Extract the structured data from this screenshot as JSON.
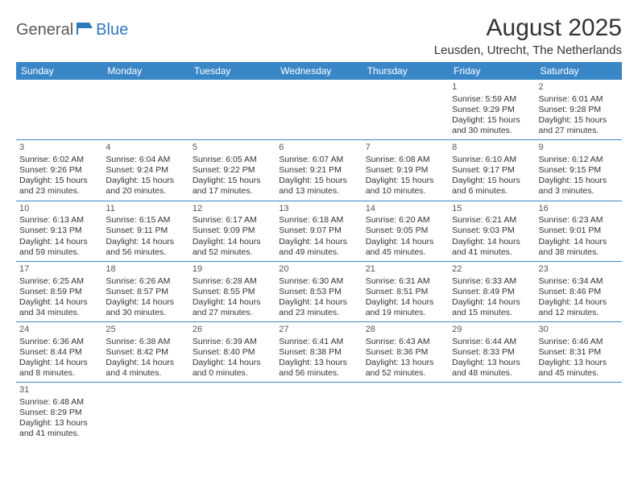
{
  "logo": {
    "part1": "General",
    "part2": "Blue"
  },
  "title": "August 2025",
  "location": "Leusden, Utrecht, The Netherlands",
  "colors": {
    "headerBg": "#3a87c8",
    "headerText": "#ffffff",
    "border": "#3a87c8",
    "logoGray": "#5a5a5a",
    "logoBlue": "#2f78bc",
    "bodyText": "#333333"
  },
  "dayHeaders": [
    "Sunday",
    "Monday",
    "Tuesday",
    "Wednesday",
    "Thursday",
    "Friday",
    "Saturday"
  ],
  "weeks": [
    [
      null,
      null,
      null,
      null,
      null,
      {
        "n": "1",
        "sr": "Sunrise: 5:59 AM",
        "ss": "Sunset: 9:29 PM",
        "d1": "Daylight: 15 hours",
        "d2": "and 30 minutes."
      },
      {
        "n": "2",
        "sr": "Sunrise: 6:01 AM",
        "ss": "Sunset: 9:28 PM",
        "d1": "Daylight: 15 hours",
        "d2": "and 27 minutes."
      }
    ],
    [
      {
        "n": "3",
        "sr": "Sunrise: 6:02 AM",
        "ss": "Sunset: 9:26 PM",
        "d1": "Daylight: 15 hours",
        "d2": "and 23 minutes."
      },
      {
        "n": "4",
        "sr": "Sunrise: 6:04 AM",
        "ss": "Sunset: 9:24 PM",
        "d1": "Daylight: 15 hours",
        "d2": "and 20 minutes."
      },
      {
        "n": "5",
        "sr": "Sunrise: 6:05 AM",
        "ss": "Sunset: 9:22 PM",
        "d1": "Daylight: 15 hours",
        "d2": "and 17 minutes."
      },
      {
        "n": "6",
        "sr": "Sunrise: 6:07 AM",
        "ss": "Sunset: 9:21 PM",
        "d1": "Daylight: 15 hours",
        "d2": "and 13 minutes."
      },
      {
        "n": "7",
        "sr": "Sunrise: 6:08 AM",
        "ss": "Sunset: 9:19 PM",
        "d1": "Daylight: 15 hours",
        "d2": "and 10 minutes."
      },
      {
        "n": "8",
        "sr": "Sunrise: 6:10 AM",
        "ss": "Sunset: 9:17 PM",
        "d1": "Daylight: 15 hours",
        "d2": "and 6 minutes."
      },
      {
        "n": "9",
        "sr": "Sunrise: 6:12 AM",
        "ss": "Sunset: 9:15 PM",
        "d1": "Daylight: 15 hours",
        "d2": "and 3 minutes."
      }
    ],
    [
      {
        "n": "10",
        "sr": "Sunrise: 6:13 AM",
        "ss": "Sunset: 9:13 PM",
        "d1": "Daylight: 14 hours",
        "d2": "and 59 minutes."
      },
      {
        "n": "11",
        "sr": "Sunrise: 6:15 AM",
        "ss": "Sunset: 9:11 PM",
        "d1": "Daylight: 14 hours",
        "d2": "and 56 minutes."
      },
      {
        "n": "12",
        "sr": "Sunrise: 6:17 AM",
        "ss": "Sunset: 9:09 PM",
        "d1": "Daylight: 14 hours",
        "d2": "and 52 minutes."
      },
      {
        "n": "13",
        "sr": "Sunrise: 6:18 AM",
        "ss": "Sunset: 9:07 PM",
        "d1": "Daylight: 14 hours",
        "d2": "and 49 minutes."
      },
      {
        "n": "14",
        "sr": "Sunrise: 6:20 AM",
        "ss": "Sunset: 9:05 PM",
        "d1": "Daylight: 14 hours",
        "d2": "and 45 minutes."
      },
      {
        "n": "15",
        "sr": "Sunrise: 6:21 AM",
        "ss": "Sunset: 9:03 PM",
        "d1": "Daylight: 14 hours",
        "d2": "and 41 minutes."
      },
      {
        "n": "16",
        "sr": "Sunrise: 6:23 AM",
        "ss": "Sunset: 9:01 PM",
        "d1": "Daylight: 14 hours",
        "d2": "and 38 minutes."
      }
    ],
    [
      {
        "n": "17",
        "sr": "Sunrise: 6:25 AM",
        "ss": "Sunset: 8:59 PM",
        "d1": "Daylight: 14 hours",
        "d2": "and 34 minutes."
      },
      {
        "n": "18",
        "sr": "Sunrise: 6:26 AM",
        "ss": "Sunset: 8:57 PM",
        "d1": "Daylight: 14 hours",
        "d2": "and 30 minutes."
      },
      {
        "n": "19",
        "sr": "Sunrise: 6:28 AM",
        "ss": "Sunset: 8:55 PM",
        "d1": "Daylight: 14 hours",
        "d2": "and 27 minutes."
      },
      {
        "n": "20",
        "sr": "Sunrise: 6:30 AM",
        "ss": "Sunset: 8:53 PM",
        "d1": "Daylight: 14 hours",
        "d2": "and 23 minutes."
      },
      {
        "n": "21",
        "sr": "Sunrise: 6:31 AM",
        "ss": "Sunset: 8:51 PM",
        "d1": "Daylight: 14 hours",
        "d2": "and 19 minutes."
      },
      {
        "n": "22",
        "sr": "Sunrise: 6:33 AM",
        "ss": "Sunset: 8:49 PM",
        "d1": "Daylight: 14 hours",
        "d2": "and 15 minutes."
      },
      {
        "n": "23",
        "sr": "Sunrise: 6:34 AM",
        "ss": "Sunset: 8:46 PM",
        "d1": "Daylight: 14 hours",
        "d2": "and 12 minutes."
      }
    ],
    [
      {
        "n": "24",
        "sr": "Sunrise: 6:36 AM",
        "ss": "Sunset: 8:44 PM",
        "d1": "Daylight: 14 hours",
        "d2": "and 8 minutes."
      },
      {
        "n": "25",
        "sr": "Sunrise: 6:38 AM",
        "ss": "Sunset: 8:42 PM",
        "d1": "Daylight: 14 hours",
        "d2": "and 4 minutes."
      },
      {
        "n": "26",
        "sr": "Sunrise: 6:39 AM",
        "ss": "Sunset: 8:40 PM",
        "d1": "Daylight: 14 hours",
        "d2": "and 0 minutes."
      },
      {
        "n": "27",
        "sr": "Sunrise: 6:41 AM",
        "ss": "Sunset: 8:38 PM",
        "d1": "Daylight: 13 hours",
        "d2": "and 56 minutes."
      },
      {
        "n": "28",
        "sr": "Sunrise: 6:43 AM",
        "ss": "Sunset: 8:36 PM",
        "d1": "Daylight: 13 hours",
        "d2": "and 52 minutes."
      },
      {
        "n": "29",
        "sr": "Sunrise: 6:44 AM",
        "ss": "Sunset: 8:33 PM",
        "d1": "Daylight: 13 hours",
        "d2": "and 48 minutes."
      },
      {
        "n": "30",
        "sr": "Sunrise: 6:46 AM",
        "ss": "Sunset: 8:31 PM",
        "d1": "Daylight: 13 hours",
        "d2": "and 45 minutes."
      }
    ],
    [
      {
        "n": "31",
        "sr": "Sunrise: 6:48 AM",
        "ss": "Sunset: 8:29 PM",
        "d1": "Daylight: 13 hours",
        "d2": "and 41 minutes."
      },
      null,
      null,
      null,
      null,
      null,
      null
    ]
  ]
}
